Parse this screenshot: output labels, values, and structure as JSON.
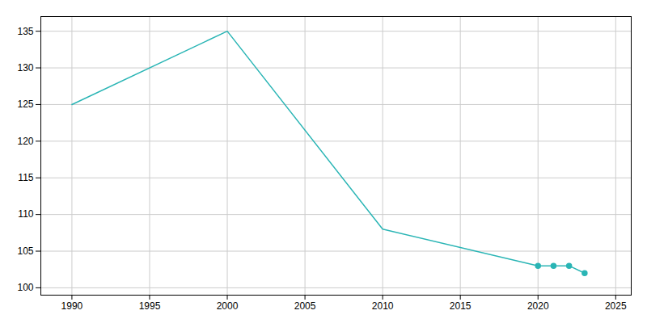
{
  "chart_data": {
    "type": "line",
    "x": [
      1990,
      2000,
      2010,
      2020,
      2021,
      2022,
      2023
    ],
    "series": [
      {
        "color": "#2ab5b5",
        "values": [
          125,
          135,
          108,
          103,
          103,
          103,
          102
        ]
      },
      {
        "type": "scatter",
        "marker": "circle",
        "color": "#2ab5b5",
        "values": [
          null,
          null,
          null,
          103,
          103,
          103,
          102
        ]
      }
    ],
    "xlim": [
      1988,
      2026
    ],
    "ylim": [
      99,
      137
    ],
    "xticks": [
      1990,
      1995,
      2000,
      2005,
      2010,
      2015,
      2020,
      2025
    ],
    "yticks": [
      100,
      105,
      110,
      115,
      120,
      125,
      130,
      135
    ],
    "grid": true
  }
}
